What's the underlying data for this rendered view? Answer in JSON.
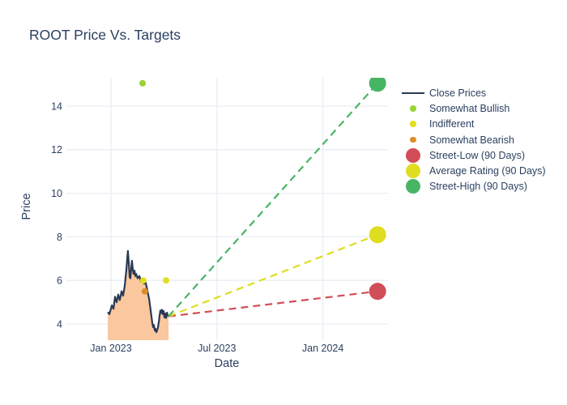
{
  "title": "ROOT Price Vs. Targets",
  "colors": {
    "text": "#2a3f5f",
    "grid": "#e9edf4",
    "close_line": "#2a3a55",
    "close_fill": "#fac79e",
    "somewhat_bullish": "#9bd237",
    "indifferent": "#e3de21",
    "somewhat_bearish": "#dd8d27",
    "street_low": "#d14d58",
    "average_rating": "#dfdd20",
    "street_high": "#48b565"
  },
  "legend": {
    "items": [
      {
        "label": "Close Prices",
        "swatch": "line",
        "color_key": "close_line"
      },
      {
        "label": "Somewhat Bullish",
        "swatch": "dot-small",
        "color_key": "somewhat_bullish"
      },
      {
        "label": "Indifferent",
        "swatch": "dot-small",
        "color_key": "indifferent"
      },
      {
        "label": "Somewhat Bearish",
        "swatch": "dot-small",
        "color_key": "somewhat_bearish"
      },
      {
        "label": "Street-Low (90 Days)",
        "swatch": "dot-large",
        "color_key": "street_low"
      },
      {
        "label": "Average Rating (90 Days)",
        "swatch": "dot-large",
        "color_key": "average_rating"
      },
      {
        "label": "Street-High (90 Days)",
        "swatch": "dot-large",
        "color_key": "street_high"
      }
    ]
  },
  "chart_data": {
    "type": "line",
    "title": "ROOT Price Vs. Targets",
    "xlabel": "Date",
    "ylabel": "Price",
    "x_unit": "months since Jan 2023",
    "x_ticks": [
      {
        "t": 0,
        "label": "Jan 2023"
      },
      {
        "t": 6,
        "label": "Jul 2023"
      },
      {
        "t": 12,
        "label": "Jan 2024"
      }
    ],
    "y_ticks": [
      4,
      6,
      8,
      10,
      12,
      14
    ],
    "xlim": [
      -2.5,
      15.7
    ],
    "ylim": [
      3.3,
      15.3
    ],
    "grid": true,
    "legend_position": "right",
    "close_prices": [
      [
        -0.18,
        4.55
      ],
      [
        -0.09,
        4.45
      ],
      [
        0.05,
        4.85
      ],
      [
        0.14,
        4.7
      ],
      [
        0.23,
        5.25
      ],
      [
        0.32,
        5.0
      ],
      [
        0.41,
        5.35
      ],
      [
        0.5,
        5.1
      ],
      [
        0.6,
        5.5
      ],
      [
        0.69,
        5.3
      ],
      [
        0.78,
        5.75
      ],
      [
        0.87,
        6.5
      ],
      [
        0.92,
        7.0
      ],
      [
        0.96,
        7.35
      ],
      [
        1.01,
        6.8
      ],
      [
        1.06,
        6.15
      ],
      [
        1.1,
        6.1
      ],
      [
        1.15,
        6.6
      ],
      [
        1.19,
        6.9
      ],
      [
        1.24,
        6.5
      ],
      [
        1.28,
        6.3
      ],
      [
        1.33,
        6.45
      ],
      [
        1.38,
        6.2
      ],
      [
        1.42,
        6.3
      ],
      [
        1.51,
        6.1
      ],
      [
        1.61,
        6.2
      ],
      [
        1.7,
        5.95
      ],
      [
        1.79,
        6.05
      ],
      [
        1.88,
        5.85
      ],
      [
        1.97,
        5.9
      ],
      [
        2.06,
        5.55
      ],
      [
        2.16,
        5.15
      ],
      [
        2.25,
        4.6
      ],
      [
        2.34,
        4.05
      ],
      [
        2.39,
        3.85
      ],
      [
        2.43,
        3.95
      ],
      [
        2.48,
        3.7
      ],
      [
        2.52,
        3.78
      ],
      [
        2.57,
        3.62
      ],
      [
        2.61,
        3.7
      ],
      [
        2.66,
        3.85
      ],
      [
        2.71,
        4.1
      ],
      [
        2.75,
        4.35
      ],
      [
        2.8,
        4.62
      ],
      [
        2.84,
        4.5
      ],
      [
        2.89,
        4.65
      ],
      [
        2.94,
        4.45
      ],
      [
        2.98,
        4.6
      ],
      [
        3.03,
        4.3
      ],
      [
        3.07,
        4.48
      ],
      [
        3.12,
        4.28
      ],
      [
        3.17,
        4.52
      ],
      [
        3.21,
        4.4
      ],
      [
        3.26,
        4.35
      ]
    ],
    "sentiment_markers": [
      {
        "key": "somewhat_bullish",
        "label": "Somewhat Bullish",
        "t": 1.79,
        "price": 15.05
      },
      {
        "key": "indifferent",
        "label": "Indifferent",
        "t": 1.83,
        "price": 6.0
      },
      {
        "key": "somewhat_bearish",
        "label": "Somewhat Bearish",
        "t": 1.92,
        "price": 5.5
      },
      {
        "key": "indifferent",
        "label": "Indifferent",
        "t": 3.12,
        "price": 6.0
      }
    ],
    "price_targets": {
      "from": {
        "t": 3.26,
        "price": 4.35
      },
      "t": 15.1,
      "targets": [
        {
          "key": "street_low",
          "label": "Street-Low (90 Days)",
          "price": 5.5
        },
        {
          "key": "average_rating",
          "label": "Average Rating (90 Days)",
          "price": 8.1
        },
        {
          "key": "street_high",
          "label": "Street-High (90 Days)",
          "price": 15.05
        }
      ]
    }
  }
}
